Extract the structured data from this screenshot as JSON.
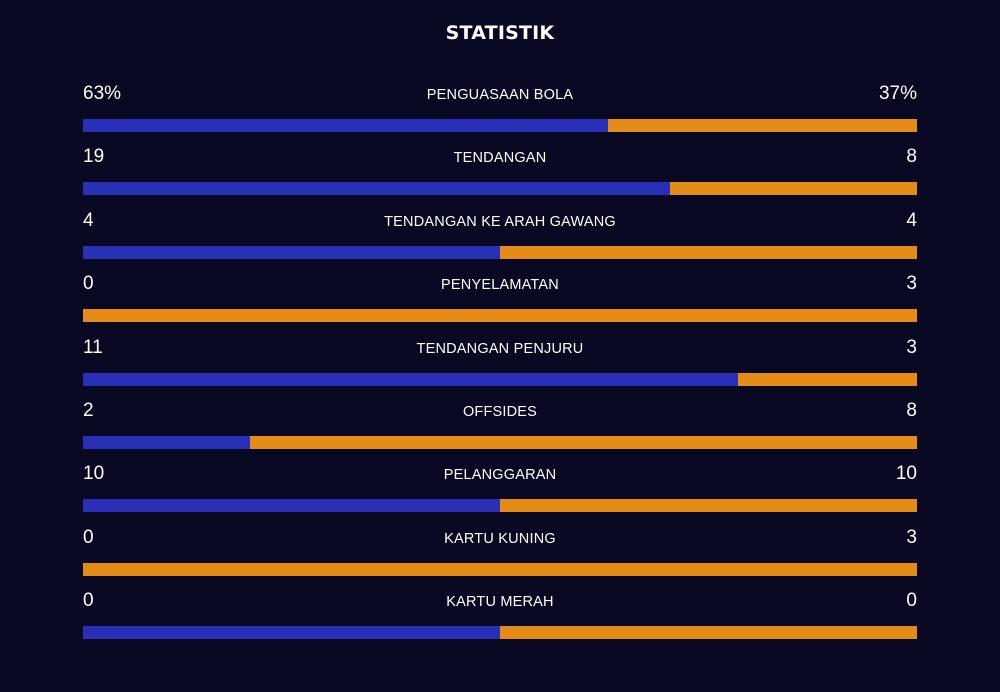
{
  "title": "STATISTIK",
  "colors": {
    "background": "#080822",
    "home": "#2a2fb7",
    "away": "#e48c16",
    "text": "#ffffff"
  },
  "stats": [
    {
      "label": "PENGUASAAN BOLA",
      "home": "63%",
      "away": "37%",
      "home_value": 63,
      "away_value": 37
    },
    {
      "label": "TENDANGAN",
      "home": "19",
      "away": "8",
      "home_value": 19,
      "away_value": 8
    },
    {
      "label": "TENDANGAN KE ARAH GAWANG",
      "home": "4",
      "away": "4",
      "home_value": 4,
      "away_value": 4
    },
    {
      "label": "PENYELAMATAN",
      "home": "0",
      "away": "3",
      "home_value": 0,
      "away_value": 3
    },
    {
      "label": "TENDANGAN PENJURU",
      "home": "11",
      "away": "3",
      "home_value": 11,
      "away_value": 3
    },
    {
      "label": "OFFSIDES",
      "home": "2",
      "away": "8",
      "home_value": 2,
      "away_value": 8
    },
    {
      "label": "PELANGGARAN",
      "home": "10",
      "away": "10",
      "home_value": 10,
      "away_value": 10
    },
    {
      "label": "KARTU KUNING",
      "home": "0",
      "away": "3",
      "home_value": 0,
      "away_value": 3
    },
    {
      "label": "KARTU MERAH",
      "home": "0",
      "away": "0",
      "home_value": 0,
      "away_value": 0
    }
  ]
}
